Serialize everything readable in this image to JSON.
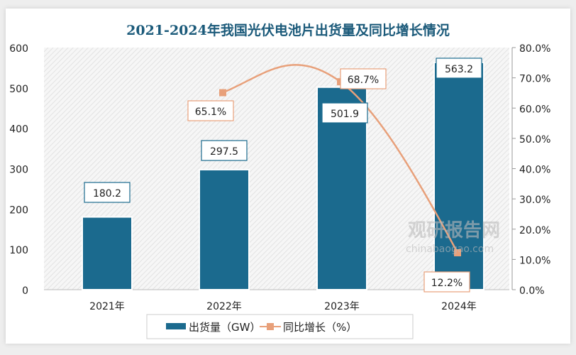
{
  "chart_data": {
    "type": "bar",
    "title": "2021-2024年我国光伏电池片出货量及同比增长情况",
    "categories": [
      "2021年",
      "2022年",
      "2023年",
      "2024年"
    ],
    "series": [
      {
        "name": "出货量（GW）",
        "type": "bar",
        "axis": "left",
        "values": [
          180.2,
          297.5,
          501.9,
          563.2
        ],
        "labels": [
          "180.2",
          "297.5",
          "501.9",
          "563.2"
        ],
        "color": "#1b6a8e"
      },
      {
        "name": "同比增长（%）",
        "type": "line",
        "axis": "right",
        "values": [
          null,
          65.1,
          68.7,
          12.2
        ],
        "labels": [
          "",
          "65.1%",
          "68.7%",
          "12.2%"
        ],
        "color": "#e8a07a"
      }
    ],
    "ylim": [
      0,
      600
    ],
    "yticks": [
      "0",
      "100",
      "200",
      "300",
      "400",
      "500",
      "600"
    ],
    "y2lim": [
      0,
      80
    ],
    "y2ticks": [
      "0.0%",
      "10.0%",
      "20.0%",
      "30.0%",
      "40.0%",
      "50.0%",
      "60.0%",
      "70.0%",
      "80.0%"
    ],
    "legend": "bottom",
    "grid": false
  },
  "watermark": {
    "name": "观研报告网",
    "url": "chinabaogao.com"
  }
}
